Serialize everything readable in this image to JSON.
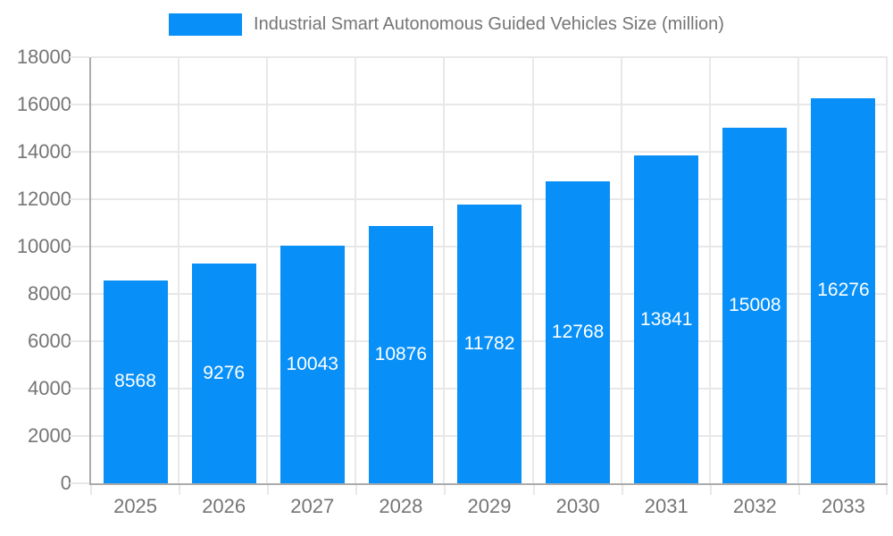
{
  "chart_data": {
    "type": "bar",
    "title": "",
    "legend": "Industrial Smart Autonomous Guided Vehicles Size (million)",
    "legend_position": "top",
    "categories": [
      "2025",
      "2026",
      "2027",
      "2028",
      "2029",
      "2030",
      "2031",
      "2032",
      "2033"
    ],
    "values": [
      8568,
      9276,
      10043,
      10876,
      11782,
      12768,
      13841,
      15008,
      16276
    ],
    "xlabel": "",
    "ylabel": "",
    "ylim": [
      0,
      18000
    ],
    "ytick_step": 2000,
    "ytick_labels": [
      "0",
      "2000",
      "4000",
      "6000",
      "8000",
      "10000",
      "12000",
      "14000",
      "16000",
      "18000"
    ],
    "grid": true,
    "bar_labels_shown": true
  },
  "colors": {
    "bar": "#0890f8",
    "bar_label_text": "#ffffff",
    "axis_line": "#ababab",
    "gridline": "#e8e8e8",
    "tick_label_text": "#757575",
    "legend_text": "#757575",
    "background": "#ffffff"
  }
}
